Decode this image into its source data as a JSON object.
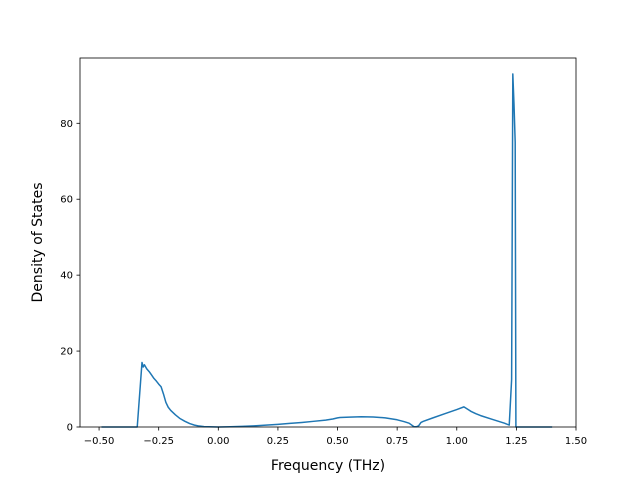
{
  "chart_data": {
    "type": "line",
    "title": "",
    "xlabel": "Frequency (THz)",
    "ylabel": "Density of States",
    "xlim": [
      -0.58,
      1.5
    ],
    "ylim": [
      0,
      97.2
    ],
    "xticks": [
      -0.5,
      -0.25,
      0.0,
      0.25,
      0.5,
      0.75,
      1.0,
      1.25,
      1.5
    ],
    "xtick_labels": [
      "−0.50",
      "−0.25",
      "0.00",
      "0.25",
      "0.50",
      "0.75",
      "1.00",
      "1.25",
      "1.50"
    ],
    "yticks": [
      0,
      20,
      40,
      60,
      80
    ],
    "ytick_labels": [
      "0",
      "20",
      "40",
      "60",
      "80"
    ],
    "grid": false,
    "series": [
      {
        "color": "#1f77b4",
        "x": [
          -0.49,
          -0.34,
          -0.32,
          -0.315,
          -0.31,
          -0.3,
          -0.29,
          -0.28,
          -0.27,
          -0.26,
          -0.25,
          -0.24,
          -0.23,
          -0.22,
          -0.21,
          -0.2,
          -0.18,
          -0.16,
          -0.14,
          -0.12,
          -0.1,
          -0.08,
          -0.06,
          -0.04,
          -0.02,
          0.0,
          0.05,
          0.1,
          0.15,
          0.2,
          0.25,
          0.3,
          0.35,
          0.4,
          0.45,
          0.48,
          0.5,
          0.51,
          0.55,
          0.6,
          0.65,
          0.7,
          0.75,
          0.78,
          0.8,
          0.82,
          0.83,
          0.84,
          0.85,
          0.86,
          0.9,
          0.95,
          1.0,
          1.03,
          1.05,
          1.06,
          1.08,
          1.1,
          1.15,
          1.2,
          1.22,
          1.23,
          1.235,
          1.24,
          1.245,
          1.248,
          1.252,
          1.3,
          1.4
        ],
        "y": [
          0,
          0,
          17.0,
          15.8,
          16.4,
          15.3,
          14.6,
          13.7,
          12.8,
          12.1,
          11.3,
          10.6,
          8.7,
          6.5,
          5.2,
          4.4,
          3.2,
          2.2,
          1.5,
          0.9,
          0.5,
          0.25,
          0.1,
          0.05,
          0.02,
          0,
          0.05,
          0.15,
          0.3,
          0.5,
          0.7,
          0.95,
          1.2,
          1.5,
          1.8,
          2.1,
          2.4,
          2.5,
          2.6,
          2.7,
          2.65,
          2.4,
          1.9,
          1.4,
          1.0,
          0.1,
          0.05,
          0.3,
          1.2,
          1.5,
          2.4,
          3.5,
          4.6,
          5.3,
          4.5,
          4.1,
          3.5,
          3.0,
          2.0,
          1.0,
          0.5,
          12.5,
          93.0,
          85.0,
          75.0,
          0,
          0,
          0,
          0
        ]
      }
    ]
  }
}
